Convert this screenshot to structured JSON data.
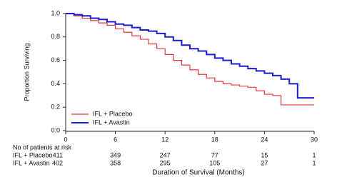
{
  "chart_data": {
    "type": "line",
    "step": true,
    "x_label": "Duration of Survival (Months)",
    "y_label": "Proportion Surviving",
    "x": [
      0,
      1,
      2,
      3,
      4,
      5,
      6,
      7,
      8,
      9,
      10,
      11,
      12,
      13,
      14,
      15,
      16,
      17,
      18,
      19,
      20,
      21,
      22,
      23,
      24,
      25,
      26,
      27,
      28,
      29,
      30
    ],
    "series": [
      {
        "name": "IFL + Placebo",
        "color": "#e8393a",
        "width": 1.2,
        "values": [
          1.0,
          0.98,
          0.96,
          0.94,
          0.92,
          0.9,
          0.87,
          0.84,
          0.81,
          0.78,
          0.74,
          0.7,
          0.65,
          0.6,
          0.56,
          0.52,
          0.48,
          0.45,
          0.42,
          0.4,
          0.39,
          0.38,
          0.37,
          0.34,
          0.31,
          0.3,
          0.22,
          0.22,
          0.22,
          0.22,
          0.22
        ]
      },
      {
        "name": "IFL + Avastin",
        "color": "#1c1ccf",
        "width": 2,
        "values": [
          1.0,
          0.99,
          0.98,
          0.96,
          0.95,
          0.93,
          0.91,
          0.9,
          0.88,
          0.86,
          0.85,
          0.83,
          0.8,
          0.77,
          0.73,
          0.7,
          0.68,
          0.65,
          0.62,
          0.6,
          0.57,
          0.55,
          0.53,
          0.51,
          0.49,
          0.47,
          0.44,
          0.4,
          0.28,
          0.28,
          0.28
        ]
      }
    ],
    "xlim": [
      0,
      30
    ],
    "xticks": [
      0,
      6,
      12,
      18,
      24,
      30
    ],
    "ylim": [
      0,
      1
    ],
    "yticks": [
      {
        "value": 0,
        "label": "0.0"
      },
      0.2,
      0.4,
      0.6,
      0.8,
      {
        "value": 1,
        "label": "1.0"
      }
    ],
    "legend": "lower left",
    "risk_table": {
      "title": "No of patients at risk",
      "rows": [
        {
          "name": "IFL + Placebo",
          "values": [
            411,
            349,
            247,
            77,
            15,
            1
          ]
        },
        {
          "name": "IFL + Avastin",
          "values": [
            402,
            358,
            295,
            105,
            27,
            1
          ]
        }
      ]
    }
  }
}
